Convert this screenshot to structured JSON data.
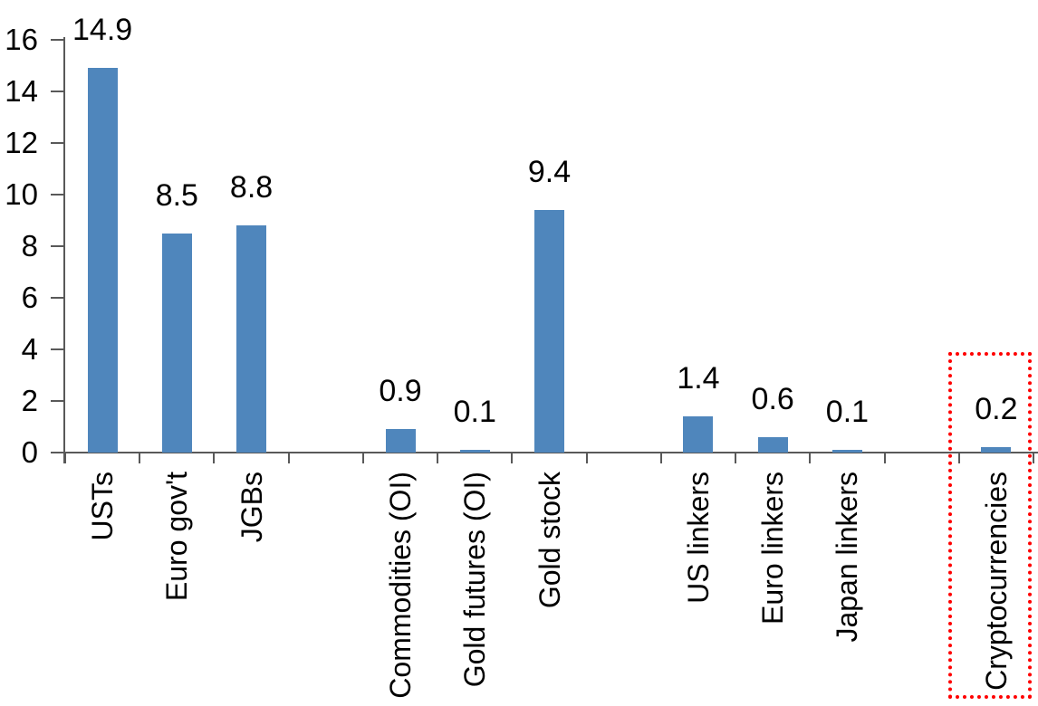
{
  "chart_data": {
    "type": "bar",
    "title": "",
    "xlabel": "",
    "ylabel": "",
    "categories": [
      "USTs",
      "Euro gov't",
      "JGBs",
      "",
      "Commodities (OI)",
      "Gold futures (OI)",
      "Gold stock",
      "",
      "US linkers",
      "Euro linkers",
      "Japan linkers",
      "",
      "Cryptocurrencies"
    ],
    "values": [
      14.9,
      8.5,
      8.8,
      null,
      0.9,
      0.1,
      9.4,
      null,
      1.4,
      0.6,
      0.1,
      null,
      0.2
    ],
    "data_labels": [
      "14.9",
      "8.5",
      "8.8",
      null,
      "0.9",
      "0.1",
      "9.4",
      null,
      "1.4",
      "0.6",
      "0.1",
      null,
      "0.2"
    ],
    "yticks": [
      0,
      2,
      4,
      6,
      8,
      10,
      12,
      14,
      16
    ],
    "ylim": [
      0,
      16
    ],
    "grid": false,
    "legend": "none",
    "bar_color": "#4f86bc",
    "axis_color": "#595959",
    "text_color": "#000000",
    "highlight": {
      "target_category": "Cryptocurrencies",
      "shape": "dotted-rectangle",
      "border_color": "#ff0000"
    }
  }
}
